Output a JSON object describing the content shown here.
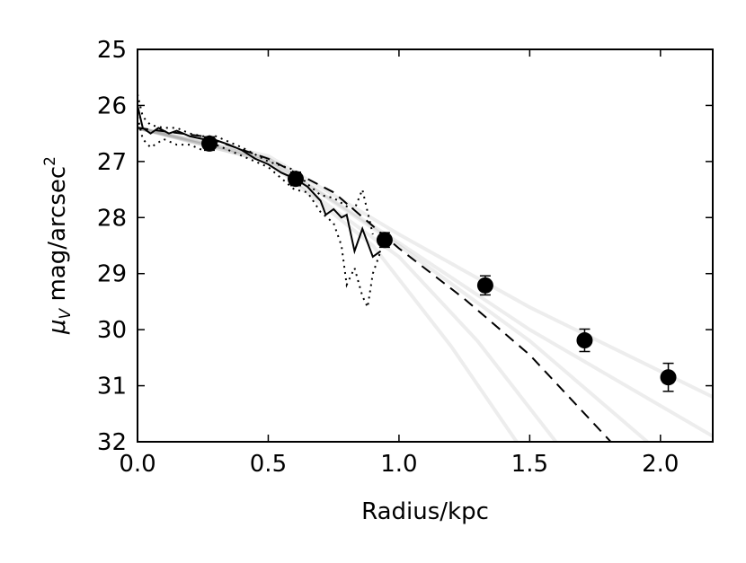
{
  "chart_data": {
    "type": "line",
    "xlabel": "Radius/kpc",
    "ylabel": {
      "symbol": "μ",
      "subscript": "V",
      "text": " mag/arcsec",
      "superscript": "2"
    },
    "xlim": [
      0,
      2.2
    ],
    "xticks": [
      {
        "value": 0,
        "label": "0.0"
      },
      0.5,
      {
        "value": 1,
        "label": "1.0"
      },
      1.5,
      {
        "value": 2,
        "label": "2.0"
      }
    ],
    "ylim": [
      25,
      32
    ],
    "y_inverted": true,
    "yticks": [
      25,
      26,
      27,
      28,
      29,
      30,
      31,
      32
    ],
    "series": [
      {
        "color": "rgba(0,0,0,0.07)",
        "style": "solid",
        "width": 4,
        "x": [
          0,
          0.5,
          1.0,
          1.5,
          2.2
        ],
        "values": [
          26.4,
          26.9,
          28.3,
          29.6,
          31.2
        ]
      },
      {
        "color": "rgba(0,0,0,0.07)",
        "style": "solid",
        "width": 4,
        "x": [
          0,
          0.5,
          1.0,
          1.5,
          2.2
        ],
        "values": [
          26.4,
          26.95,
          28.45,
          30.0,
          31.9
        ]
      },
      {
        "color": "rgba(0,0,0,0.07)",
        "style": "solid",
        "width": 4,
        "x": [
          0,
          0.5,
          1.0,
          1.5,
          1.95
        ],
        "values": [
          26.4,
          26.95,
          28.5,
          30.2,
          32
        ]
      },
      {
        "color": "rgba(0,0,0,0.07)",
        "style": "solid",
        "width": 4,
        "x": [
          0,
          0.5,
          1.0,
          1.3,
          1.6
        ],
        "values": [
          26.4,
          27.0,
          28.7,
          30.2,
          32
        ]
      },
      {
        "color": "rgba(0,0,0,0.07)",
        "style": "solid",
        "width": 4,
        "x": [
          0,
          0.5,
          0.9,
          1.2,
          1.45
        ],
        "values": [
          26.4,
          27.0,
          28.5,
          30.3,
          32
        ]
      },
      {
        "color": "#000000",
        "style": "dotted",
        "width": 2,
        "x": [
          0,
          0.02,
          0.05,
          0.1,
          0.15,
          0.2,
          0.25,
          0.3,
          0.4,
          0.5,
          0.6,
          0.65,
          0.7,
          0.75,
          0.8,
          0.83,
          0.86,
          0.88,
          0.9
        ],
        "values": [
          25.8,
          26.2,
          26.35,
          26.4,
          26.4,
          26.5,
          26.55,
          26.55,
          26.75,
          27.0,
          27.15,
          27.4,
          27.6,
          27.65,
          27.8,
          27.85,
          27.5,
          27.9,
          28.3
        ]
      },
      {
        "color": "#000000",
        "style": "dotted",
        "width": 2,
        "x": [
          0,
          0.02,
          0.05,
          0.1,
          0.15,
          0.2,
          0.25,
          0.3,
          0.4,
          0.5,
          0.6,
          0.65,
          0.7,
          0.75,
          0.78,
          0.8,
          0.83,
          0.86,
          0.88,
          0.9,
          0.93
        ],
        "values": [
          26.2,
          26.6,
          26.75,
          26.6,
          26.7,
          26.7,
          26.8,
          26.7,
          26.9,
          27.1,
          27.5,
          27.55,
          27.9,
          28.1,
          28.5,
          29.2,
          28.9,
          29.4,
          29.6,
          29.0,
          28.6
        ]
      },
      {
        "color": "#000000",
        "style": "solid",
        "width": 2,
        "x": [
          0,
          0.02,
          0.05,
          0.08,
          0.12,
          0.15,
          0.2,
          0.25,
          0.3,
          0.35,
          0.4,
          0.45,
          0.5,
          0.55,
          0.6,
          0.65,
          0.7,
          0.72,
          0.75,
          0.78,
          0.8,
          0.83,
          0.86,
          0.88,
          0.9,
          0.93
        ],
        "values": [
          26.0,
          26.4,
          26.5,
          26.4,
          26.5,
          26.45,
          26.55,
          26.6,
          26.62,
          26.7,
          26.8,
          26.95,
          27.05,
          27.2,
          27.3,
          27.45,
          27.7,
          27.95,
          27.85,
          28.0,
          27.95,
          28.6,
          28.2,
          28.45,
          28.7,
          28.6
        ]
      },
      {
        "color": "#000000",
        "style": "dashed",
        "width": 2,
        "x": [
          0,
          0.25,
          0.5,
          0.75,
          1.0,
          1.25,
          1.5,
          1.81
        ],
        "values": [
          26.4,
          26.55,
          26.95,
          27.55,
          28.55,
          29.45,
          30.45,
          32
        ]
      }
    ],
    "points": {
      "color": "#000000",
      "x": [
        0.275,
        0.605,
        0.945,
        1.33,
        1.71,
        2.03
      ],
      "values": [
        26.68,
        27.31,
        28.4,
        29.21,
        30.19,
        30.85
      ],
      "errors": [
        0.12,
        0.12,
        0.13,
        0.17,
        0.2,
        0.25
      ]
    }
  }
}
